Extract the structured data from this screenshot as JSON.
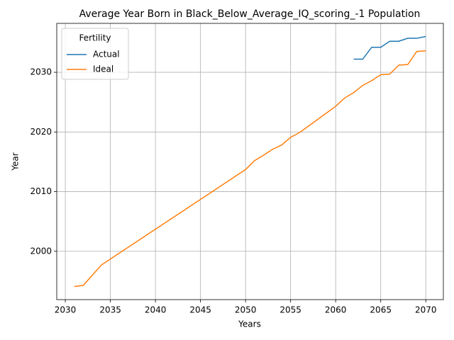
{
  "chart_data": {
    "type": "line",
    "title": "Average Year Born in Black_Below_Average_IQ_scoring_-1 Population",
    "xlabel": "Years",
    "ylabel": "Year",
    "x": [
      2031,
      2032,
      2033,
      2034,
      2035,
      2036,
      2037,
      2038,
      2039,
      2040,
      2041,
      2042,
      2043,
      2044,
      2045,
      2046,
      2047,
      2048,
      2049,
      2050,
      2051,
      2052,
      2053,
      2054,
      2055,
      2056,
      2057,
      2058,
      2059,
      2060,
      2061,
      2062,
      2063,
      2064,
      2065,
      2066,
      2067,
      2068,
      2069,
      2070
    ],
    "series": [
      {
        "name": "Actual",
        "color": "#1f77b4",
        "values": [
          null,
          null,
          null,
          null,
          null,
          null,
          null,
          null,
          null,
          null,
          null,
          null,
          null,
          null,
          null,
          null,
          null,
          null,
          null,
          null,
          null,
          null,
          null,
          null,
          null,
          null,
          null,
          null,
          null,
          null,
          null,
          2032.2,
          2032.2,
          2034.2,
          2034.2,
          2035.2,
          2035.2,
          2035.7,
          2035.7,
          2036.0
        ]
      },
      {
        "name": "Ideal",
        "color": "#ff7f0e",
        "values": [
          1994.1,
          1994.3,
          1996.0,
          1997.7,
          1998.7,
          1999.7,
          2000.7,
          2001.7,
          2002.7,
          2003.7,
          2004.7,
          2005.7,
          2006.7,
          2007.7,
          2008.7,
          2009.7,
          2010.7,
          2011.7,
          2012.7,
          2013.7,
          2015.2,
          2016.1,
          2017.1,
          2017.8,
          2019.1,
          2019.9,
          2021.0,
          2022.1,
          2023.2,
          2024.3,
          2025.7,
          2026.6,
          2027.8,
          2028.6,
          2029.6,
          2029.7,
          2031.2,
          2031.3,
          2033.5,
          2033.6
        ]
      }
    ],
    "legend_title": "Fertility",
    "legend": "upper left",
    "grid": true,
    "xlim": [
      2029.05,
      2071.95
    ],
    "xticks": [
      2030,
      2035,
      2040,
      2045,
      2050,
      2055,
      2060,
      2065,
      2070
    ],
    "ylim": [
      1991.9,
      2038.2
    ],
    "yticks": [
      2000,
      2010,
      2020,
      2030
    ]
  }
}
